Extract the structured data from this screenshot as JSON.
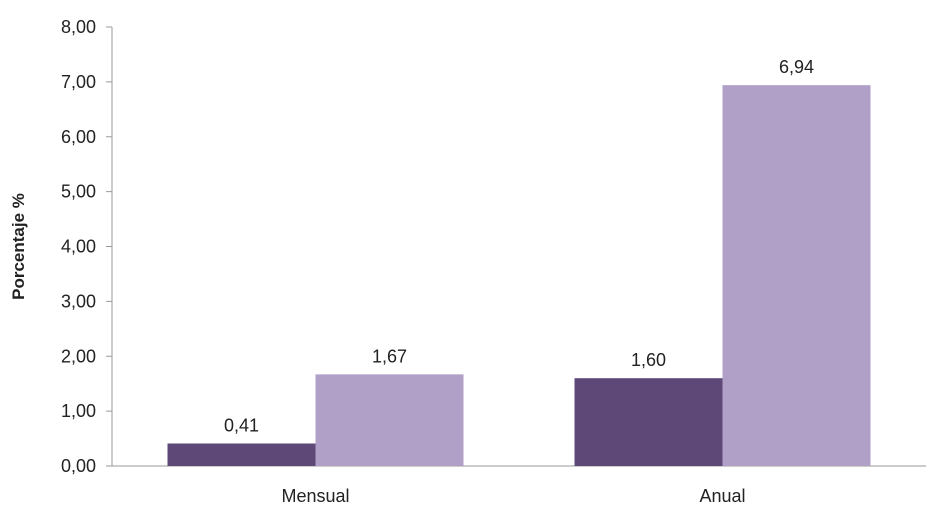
{
  "chart_data": {
    "type": "bar",
    "categories": [
      "Mensual",
      "Anual"
    ],
    "series": [
      {
        "values": [
          0.41,
          1.6
        ],
        "labels": [
          "0,41",
          "1,60"
        ],
        "color": "#5e4878"
      },
      {
        "values": [
          1.67,
          6.94
        ],
        "labels": [
          "1,67",
          "6,94"
        ],
        "color": "#b09fc7"
      }
    ],
    "ylabel": "Porcentaje %",
    "xlabel": "",
    "title": "",
    "ylim": [
      0,
      8
    ],
    "yticks": [
      0,
      1,
      2,
      3,
      4,
      5,
      6,
      7,
      8
    ],
    "ytick_labels": [
      "0,00",
      "1,00",
      "2,00",
      "3,00",
      "4,00",
      "5,00",
      "6,00",
      "7,00",
      "8,00"
    ],
    "grid": false,
    "legend": "none"
  }
}
